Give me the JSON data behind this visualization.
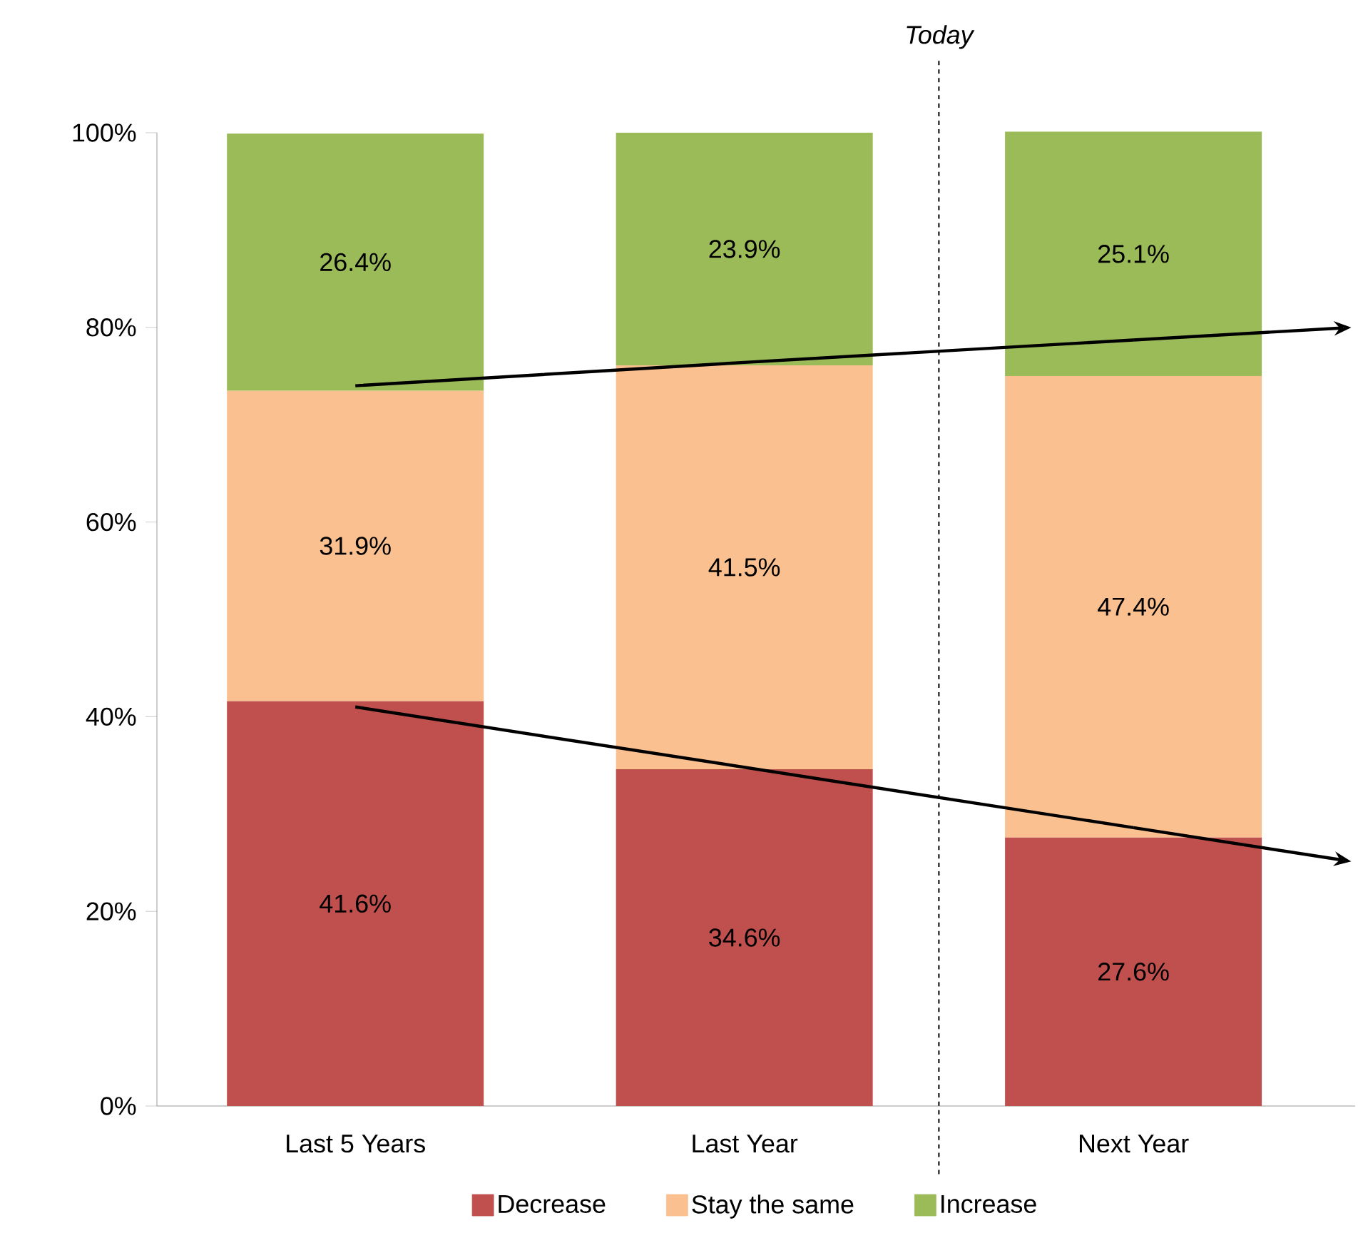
{
  "chart_data": {
    "type": "bar",
    "stacked": true,
    "categories": [
      "Last 5 Years",
      "Last Year",
      "Next Year"
    ],
    "series": [
      {
        "name": "Decrease",
        "color": "#c0504d",
        "values": [
          41.6,
          34.6,
          27.6
        ],
        "value_labels": [
          "41.6%",
          "34.6%",
          "27.6%"
        ]
      },
      {
        "name": "Stay the same",
        "color": "#fac090",
        "values": [
          31.9,
          41.5,
          47.4
        ],
        "value_labels": [
          "31.9%",
          "41.5%",
          "47.4%"
        ]
      },
      {
        "name": "Increase",
        "color": "#9bbb59",
        "values": [
          26.4,
          23.9,
          25.1
        ],
        "value_labels": [
          "26.4%",
          "23.9%",
          "25.1%"
        ]
      },
      {
        "type": "line",
        "color": "#000000",
        "values": [
          74,
          76.4,
          78.7
        ]
      },
      {
        "type": "line",
        "color": "#000000",
        "values": [
          41,
          34.8,
          28.6
        ]
      }
    ],
    "ylim": [
      0,
      100
    ],
    "yticks": [
      {
        "value": 0,
        "label": "0%"
      },
      {
        "value": 20,
        "label": "20%"
      },
      {
        "value": 40,
        "label": "40%"
      },
      {
        "value": 60,
        "label": "60%"
      },
      {
        "value": 80,
        "label": "80%"
      },
      {
        "value": 100,
        "label": "100%"
      }
    ],
    "annotations": [
      "Today"
    ],
    "legend": "bottom",
    "grid": false
  }
}
